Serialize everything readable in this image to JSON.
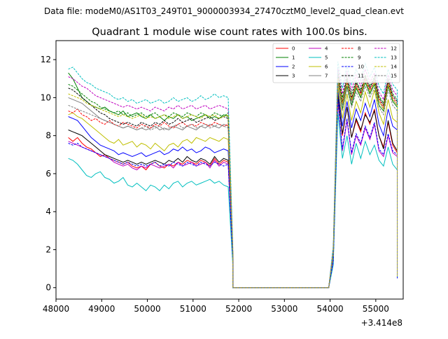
{
  "figure": {
    "suptitle": "Data file: modeM0/AS1T03_249T01_9000003934_27470cztM0_level2_quad_clean.evt"
  },
  "chart_data": {
    "type": "line",
    "title": "Quadrant 1 module wise count rates with 100.0s bins.",
    "xlabel": "",
    "ylabel": "",
    "x_offset_label": "+3.414e8",
    "xlim": [
      48000,
      55600
    ],
    "ylim": [
      -0.6,
      13
    ],
    "x_ticks": [
      48000,
      49000,
      50000,
      51000,
      52000,
      53000,
      54000,
      55000
    ],
    "x_tick_labels": [
      "48000",
      "49000",
      "50000",
      "51000",
      "52000",
      "53000",
      "54000",
      "55000"
    ],
    "y_ticks": [
      0,
      2,
      4,
      6,
      8,
      10,
      12
    ],
    "y_tick_labels": [
      "0",
      "2",
      "4",
      "6",
      "8",
      "10",
      "12"
    ],
    "legend_placement": "top-right",
    "legend_columns": 4,
    "x_segments": {
      "first_start": 48270,
      "first_end": 51770,
      "drop_start": 51870,
      "drop_end": 53970,
      "second_start": 54070,
      "second_end": 55370,
      "bin": 100,
      "last_x": 55470
    },
    "series": [
      {
        "name": "0",
        "color": "#ff0000",
        "dashed": false,
        "first": [
          7.9,
          7.7,
          7.9,
          7.6,
          7.4,
          7.3,
          7.1,
          6.9,
          7.0,
          6.8,
          6.7,
          6.6,
          6.5,
          6.6,
          6.4,
          6.3,
          6.4,
          6.2,
          6.5,
          6.6,
          6.4,
          6.3,
          6.5,
          6.4,
          6.6,
          6.5,
          6.7,
          6.6,
          6.5,
          6.7,
          6.6,
          6.4,
          6.8,
          6.5,
          6.7,
          6.6
        ],
        "transition": 1.5,
        "second": [
          10.2,
          8.0,
          9.5,
          7.9,
          8.8,
          8.2,
          9.2,
          8.6,
          9.4,
          8.0,
          7.4,
          8.7,
          7.5,
          7.1
        ],
        "last": 0.5
      },
      {
        "name": "1",
        "color": "#008000",
        "dashed": false,
        "first": [
          11.3,
          11.0,
          10.5,
          10.0,
          9.8,
          9.6,
          9.5,
          9.4,
          9.5,
          9.3,
          9.2,
          9.1,
          9.3,
          9.0,
          9.1,
          9.2,
          9.0,
          8.9,
          9.1,
          8.9,
          9.0,
          8.8,
          9.0,
          8.9,
          9.1,
          8.9,
          9.0,
          8.8,
          8.9,
          9.0,
          9.1,
          8.9,
          9.0,
          8.9,
          9.1,
          9.0
        ],
        "transition": 1.8,
        "second": [
          10.9,
          9.4,
          10.6,
          9.6,
          10.5,
          10.0,
          10.8,
          10.2,
          10.7,
          9.6,
          9.3,
          10.6,
          9.8,
          9.5
        ],
        "last": 0.6
      },
      {
        "name": "2",
        "color": "#0000ff",
        "dashed": false,
        "first": [
          9.0,
          8.9,
          8.8,
          8.5,
          8.2,
          7.9,
          7.7,
          7.5,
          7.4,
          7.3,
          7.2,
          7.0,
          7.1,
          7.0,
          6.9,
          7.0,
          7.1,
          6.9,
          7.0,
          7.1,
          7.2,
          7.0,
          7.1,
          7.3,
          7.2,
          7.4,
          7.2,
          7.3,
          7.1,
          7.2,
          7.4,
          7.3,
          7.1,
          7.2,
          7.3,
          7.2
        ],
        "transition": 1.6,
        "second": [
          10.4,
          8.5,
          9.8,
          8.4,
          9.4,
          8.8,
          9.7,
          9.0,
          9.9,
          8.6,
          8.0,
          9.4,
          8.5,
          8.3
        ],
        "last": 0.5
      },
      {
        "name": "3",
        "color": "#000000",
        "dashed": false,
        "first": [
          8.3,
          8.2,
          8.1,
          8.0,
          7.8,
          7.6,
          7.4,
          7.2,
          7.0,
          6.9,
          6.8,
          6.7,
          6.6,
          6.7,
          6.6,
          6.5,
          6.6,
          6.5,
          6.6,
          6.7,
          6.6,
          6.5,
          6.7,
          6.6,
          6.8,
          6.6,
          6.9,
          6.7,
          6.6,
          6.8,
          6.7,
          6.5,
          6.9,
          6.6,
          6.8,
          6.7
        ],
        "transition": 1.5,
        "second": [
          10.1,
          8.1,
          9.5,
          7.9,
          8.9,
          8.3,
          9.1,
          8.7,
          9.3,
          8.0,
          7.3,
          8.8,
          7.6,
          7.2
        ],
        "last": 0.5
      },
      {
        "name": "4",
        "color": "#bf00bf",
        "dashed": false,
        "first": [
          7.7,
          7.6,
          7.5,
          7.4,
          7.3,
          7.2,
          7.1,
          7.0,
          6.9,
          6.8,
          6.6,
          6.5,
          6.4,
          6.5,
          6.3,
          6.2,
          6.4,
          6.3,
          6.5,
          6.4,
          6.3,
          6.4,
          6.5,
          6.3,
          6.6,
          6.4,
          6.5,
          6.6,
          6.4,
          6.5,
          6.6,
          6.3,
          6.7,
          6.4,
          6.6,
          6.5
        ],
        "transition": 1.4,
        "second": [
          9.8,
          7.2,
          8.8,
          7.0,
          8.0,
          7.5,
          8.4,
          7.8,
          8.6,
          7.2,
          6.9,
          8.0,
          7.1,
          6.9
        ],
        "last": 0.5
      },
      {
        "name": "5",
        "color": "#00bfbf",
        "dashed": false,
        "first": [
          6.8,
          6.7,
          6.5,
          6.2,
          5.9,
          5.8,
          6.0,
          6.1,
          5.8,
          5.7,
          5.5,
          5.6,
          5.8,
          5.4,
          5.3,
          5.5,
          5.3,
          5.1,
          5.4,
          5.3,
          5.1,
          5.4,
          5.2,
          5.5,
          5.6,
          5.3,
          5.5,
          5.6,
          5.4,
          5.5,
          5.6,
          5.7,
          5.5,
          5.6,
          5.4,
          5.3
        ],
        "transition": 1.2,
        "second": [
          9.2,
          6.8,
          8.0,
          6.5,
          7.6,
          6.8,
          7.7,
          7.0,
          7.5,
          6.7,
          6.4,
          7.4,
          6.5,
          6.2
        ],
        "last": 0.5
      },
      {
        "name": "6",
        "color": "#bfbf00",
        "dashed": false,
        "first": [
          9.1,
          9.2,
          9.0,
          8.9,
          8.7,
          8.5,
          8.3,
          8.1,
          7.9,
          7.7,
          7.6,
          7.8,
          7.5,
          7.6,
          7.7,
          7.4,
          7.6,
          7.5,
          7.3,
          7.6,
          7.4,
          7.2,
          7.5,
          7.6,
          7.4,
          7.7,
          7.8,
          7.6,
          7.9,
          7.8,
          7.7,
          7.9,
          7.8,
          7.7,
          7.9,
          7.8
        ],
        "transition": 1.7,
        "second": [
          10.6,
          8.9,
          10.2,
          8.8,
          9.8,
          9.2,
          10.3,
          9.5,
          10.4,
          9.2,
          8.6,
          9.9,
          8.9,
          8.7
        ],
        "last": 0.6
      },
      {
        "name": "7",
        "color": "#808080",
        "dashed": false,
        "first": [
          10.0,
          9.9,
          9.8,
          9.7,
          9.5,
          9.3,
          9.1,
          8.9,
          8.8,
          8.7,
          8.6,
          8.5,
          8.4,
          8.5,
          8.4,
          8.3,
          8.4,
          8.3,
          8.4,
          8.5,
          8.3,
          8.4,
          8.3,
          8.5,
          8.4,
          8.3,
          8.5,
          8.4,
          8.3,
          8.5,
          8.4,
          8.6,
          8.5,
          8.4,
          8.6,
          8.5
        ],
        "transition": 1.8,
        "second": [
          11.0,
          9.6,
          10.8,
          9.8,
          10.6,
          10.1,
          10.9,
          10.3,
          10.8,
          9.8,
          9.4,
          10.7,
          9.9,
          9.6
        ],
        "last": 0.6
      },
      {
        "name": "8",
        "color": "#ff0000",
        "dashed": true,
        "first": [
          9.3,
          9.2,
          9.4,
          9.1,
          9.0,
          8.8,
          8.9,
          8.7,
          8.6,
          8.8,
          8.6,
          8.5,
          8.7,
          8.6,
          8.5,
          8.4,
          8.6,
          8.5,
          8.4,
          8.6,
          8.5,
          8.7,
          8.5,
          8.4,
          8.6,
          8.7,
          8.5,
          8.6,
          8.5,
          8.7,
          8.6,
          8.5,
          8.7,
          8.6,
          8.5,
          8.6
        ],
        "transition": 1.9,
        "second": [
          11.1,
          9.7,
          10.9,
          9.9,
          10.7,
          10.2,
          11.0,
          10.4,
          10.9,
          9.9,
          9.5,
          10.8,
          10.0,
          9.7
        ],
        "last": 0.6
      },
      {
        "name": "9",
        "color": "#008000",
        "dashed": true,
        "first": [
          10.7,
          10.6,
          10.4,
          10.2,
          10.0,
          9.8,
          9.7,
          9.5,
          9.4,
          9.3,
          9.2,
          9.3,
          9.1,
          9.2,
          9.0,
          9.1,
          9.2,
          9.0,
          9.1,
          9.2,
          9.0,
          9.1,
          9.0,
          9.2,
          9.1,
          9.0,
          9.2,
          9.1,
          9.0,
          9.2,
          9.1,
          9.0,
          9.2,
          9.1,
          9.0,
          9.2
        ],
        "transition": 2.0,
        "second": [
          11.4,
          10.0,
          11.1,
          10.2,
          10.9,
          10.4,
          11.2,
          10.6,
          11.1,
          10.1,
          9.7,
          11.0,
          10.2,
          9.9
        ],
        "last": 0.6
      },
      {
        "name": "10",
        "color": "#0000ff",
        "dashed": true,
        "first": [
          7.6,
          7.5,
          7.6,
          7.4,
          7.3,
          7.2,
          7.1,
          7.0,
          6.9,
          6.8,
          6.7,
          6.6,
          6.5,
          6.6,
          6.5,
          6.4,
          6.5,
          6.4,
          6.5,
          6.6,
          6.4,
          6.5,
          6.4,
          6.6,
          6.5,
          6.4,
          6.6,
          6.5,
          6.4,
          6.6,
          6.5,
          6.4,
          6.6,
          6.5,
          6.4,
          6.5
        ],
        "transition": 1.4,
        "second": [
          9.9,
          7.3,
          8.9,
          7.1,
          8.1,
          7.6,
          8.5,
          7.9,
          8.7,
          7.3,
          7.0,
          8.1,
          7.2,
          7.0
        ],
        "last": 0.5
      },
      {
        "name": "11",
        "color": "#000000",
        "dashed": true,
        "first": [
          10.5,
          10.4,
          10.2,
          10.0,
          9.8,
          9.6,
          9.4,
          9.2,
          9.1,
          8.9,
          8.8,
          8.7,
          8.6,
          8.7,
          8.6,
          8.5,
          8.7,
          8.6,
          8.5,
          8.7,
          8.6,
          8.8,
          8.6,
          8.7,
          8.9,
          8.7,
          8.8,
          8.9,
          8.7,
          8.8,
          8.9,
          9.0,
          8.8,
          8.9,
          9.0,
          8.9
        ],
        "transition": 1.9,
        "second": [
          11.2,
          9.8,
          11.0,
          10.0,
          10.8,
          10.3,
          11.1,
          10.5,
          11.0,
          10.0,
          9.6,
          10.9,
          10.1,
          9.8
        ],
        "last": 0.6
      },
      {
        "name": "12",
        "color": "#bf00bf",
        "dashed": true,
        "first": [
          11.1,
          11.0,
          10.8,
          10.6,
          10.5,
          10.3,
          10.1,
          10.0,
          9.9,
          9.8,
          9.7,
          9.6,
          9.5,
          9.6,
          9.5,
          9.4,
          9.5,
          9.4,
          9.3,
          9.5,
          9.4,
          9.3,
          9.5,
          9.4,
          9.6,
          9.4,
          9.5,
          9.6,
          9.4,
          9.5,
          9.6,
          9.4,
          9.5,
          9.6,
          9.5,
          9.4
        ],
        "transition": 2.1,
        "second": [
          11.6,
          10.2,
          11.4,
          10.4,
          11.2,
          10.6,
          11.5,
          10.8,
          11.3,
          10.3,
          9.9,
          11.2,
          10.4,
          10.1
        ],
        "last": 0.7
      },
      {
        "name": "13",
        "color": "#00bfbf",
        "dashed": true,
        "first": [
          11.5,
          11.6,
          11.3,
          11.0,
          10.8,
          10.7,
          10.5,
          10.4,
          10.3,
          10.2,
          10.0,
          9.9,
          10.0,
          9.8,
          9.9,
          9.7,
          9.8,
          9.9,
          9.7,
          9.8,
          9.9,
          9.7,
          9.8,
          10.0,
          9.8,
          9.9,
          10.0,
          9.8,
          9.9,
          10.1,
          9.9,
          10.0,
          10.2,
          10.0,
          10.1,
          10.0
        ],
        "transition": 2.2,
        "second": [
          11.9,
          10.5,
          11.7,
          10.7,
          11.5,
          10.9,
          11.8,
          11.1,
          11.6,
          10.6,
          10.2,
          11.5,
          10.7,
          10.4
        ],
        "last": 0.7
      },
      {
        "name": "14",
        "color": "#bfbf00",
        "dashed": true,
        "first": [
          10.2,
          10.1,
          10.0,
          9.9,
          9.7,
          9.6,
          9.5,
          9.4,
          9.3,
          9.2,
          9.1,
          9.0,
          9.1,
          9.0,
          8.9,
          9.0,
          9.1,
          8.9,
          9.0,
          8.9,
          9.0,
          9.1,
          8.9,
          9.0,
          9.1,
          8.9,
          9.0,
          9.1,
          9.0,
          8.9,
          9.1,
          9.0,
          9.1,
          8.9,
          9.0,
          9.1
        ],
        "transition": 1.9,
        "second": [
          11.0,
          9.7,
          10.8,
          9.9,
          10.6,
          10.1,
          10.9,
          10.3,
          10.8,
          9.8,
          9.4,
          10.7,
          9.9,
          9.6
        ],
        "last": 0.6
      },
      {
        "name": "15",
        "color": "#808080",
        "dashed": true,
        "first": [
          9.6,
          9.5,
          9.4,
          9.3,
          9.2,
          9.1,
          9.0,
          8.9,
          8.8,
          8.7,
          8.6,
          8.5,
          8.4,
          8.5,
          8.4,
          8.3,
          8.4,
          8.5,
          8.3,
          8.4,
          8.5,
          8.3,
          8.4,
          8.5,
          8.6,
          8.4,
          8.5,
          8.6,
          8.4,
          8.5,
          8.6,
          8.4,
          8.5,
          8.6,
          8.5,
          8.4
        ],
        "transition": 1.8,
        "second": [
          10.8,
          9.3,
          10.5,
          9.5,
          10.3,
          9.8,
          10.6,
          10.0,
          10.5,
          9.5,
          9.1,
          10.4,
          9.6,
          9.3
        ],
        "last": 0.6
      }
    ]
  }
}
